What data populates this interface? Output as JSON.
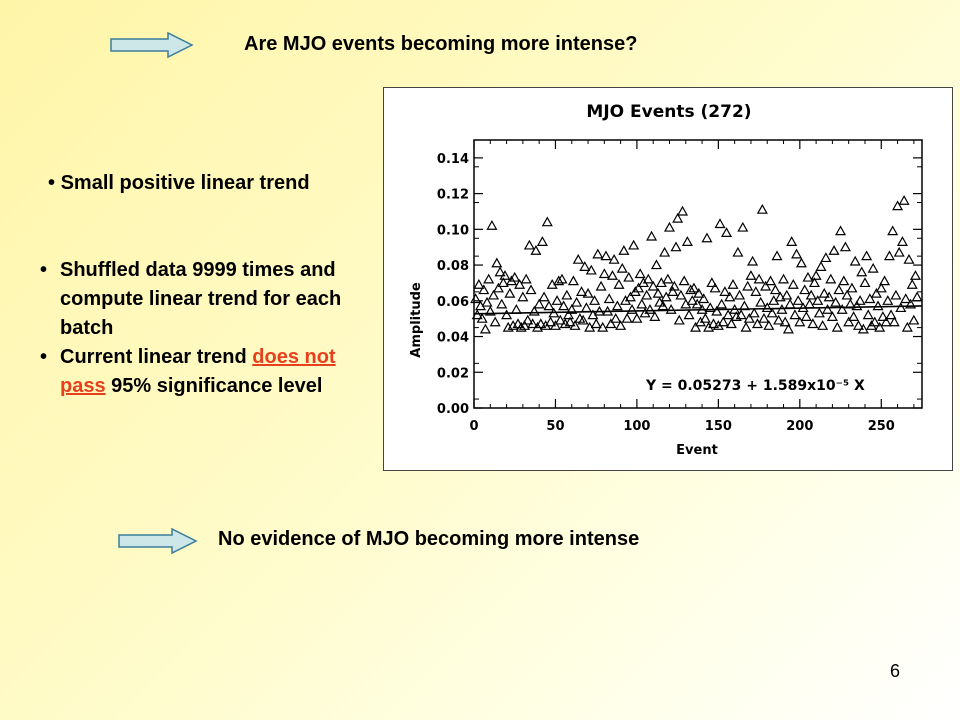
{
  "slide": {
    "title": "Are MJO events becoming more intense?",
    "bullet_top": "Small positive linear trend",
    "bullets": {
      "b1": "Shuffled data 9999 times and compute linear trend for each batch",
      "b2_pre": "Current linear trend ",
      "b2_hl": "does not pass",
      "b2_post": " 95% significance level"
    },
    "conclusion": "No evidence of MJO becoming more intense",
    "page_number": "6",
    "bullet_char": "•"
  },
  "colors": {
    "arrow_fill": "#cde7e8",
    "highlight": "#e8401c"
  },
  "chart_data": {
    "type": "scatter",
    "title": "MJO Events (272)",
    "xlabel": "Event",
    "ylabel": "Amplitude",
    "xlim": [
      0,
      275
    ],
    "ylim": [
      0,
      0.15
    ],
    "xticks": [
      0,
      50,
      100,
      150,
      200,
      250
    ],
    "xtick_labels": [
      "0",
      "50",
      "100",
      "150",
      "200",
      "250"
    ],
    "yticks": [
      0,
      0.02,
      0.04,
      0.06,
      0.08,
      0.1,
      0.12,
      0.14
    ],
    "ytick_labels": [
      "0.00",
      "0.02",
      "0.04",
      "0.06",
      "0.08",
      "0.10",
      "0.12",
      "0.14"
    ],
    "marker": "triangle-open",
    "trend": {
      "intercept": 0.05273,
      "slope": 1.589e-05,
      "label": "Y = 0.05273 + 1.589x10⁻⁵ X"
    },
    "points": [
      [
        1,
        0.061
      ],
      [
        2,
        0.052
      ],
      [
        3,
        0.069
      ],
      [
        4,
        0.057
      ],
      [
        5,
        0.05
      ],
      [
        6,
        0.066
      ],
      [
        7,
        0.044
      ],
      [
        8,
        0.059
      ],
      [
        9,
        0.072
      ],
      [
        10,
        0.054
      ],
      [
        11,
        0.102
      ],
      [
        12,
        0.063
      ],
      [
        13,
        0.048
      ],
      [
        14,
        0.081
      ],
      [
        15,
        0.067
      ],
      [
        16,
        0.076
      ],
      [
        17,
        0.058
      ],
      [
        18,
        0.07
      ],
      [
        19,
        0.074
      ],
      [
        20,
        0.052
      ],
      [
        21,
        0.045
      ],
      [
        22,
        0.064
      ],
      [
        23,
        0.071
      ],
      [
        24,
        0.046
      ],
      [
        25,
        0.073
      ],
      [
        26,
        0.055
      ],
      [
        27,
        0.047
      ],
      [
        28,
        0.069
      ],
      [
        29,
        0.045
      ],
      [
        30,
        0.062
      ],
      [
        31,
        0.046
      ],
      [
        32,
        0.072
      ],
      [
        33,
        0.049
      ],
      [
        34,
        0.091
      ],
      [
        35,
        0.066
      ],
      [
        36,
        0.047
      ],
      [
        37,
        0.054
      ],
      [
        38,
        0.088
      ],
      [
        39,
        0.045
      ],
      [
        40,
        0.058
      ],
      [
        41,
        0.047
      ],
      [
        42,
        0.093
      ],
      [
        43,
        0.062
      ],
      [
        44,
        0.046
      ],
      [
        45,
        0.104
      ],
      [
        46,
        0.057
      ],
      [
        47,
        0.048
      ],
      [
        48,
        0.069
      ],
      [
        49,
        0.053
      ],
      [
        50,
        0.046
      ],
      [
        51,
        0.06
      ],
      [
        52,
        0.071
      ],
      [
        53,
        0.049
      ],
      [
        54,
        0.072
      ],
      [
        55,
        0.057
      ],
      [
        56,
        0.047
      ],
      [
        57,
        0.063
      ],
      [
        58,
        0.052
      ],
      [
        59,
        0.048
      ],
      [
        60,
        0.055
      ],
      [
        61,
        0.071
      ],
      [
        62,
        0.046
      ],
      [
        63,
        0.059
      ],
      [
        64,
        0.083
      ],
      [
        65,
        0.05
      ],
      [
        66,
        0.065
      ],
      [
        67,
        0.049
      ],
      [
        68,
        0.079
      ],
      [
        69,
        0.056
      ],
      [
        70,
        0.064
      ],
      [
        71,
        0.045
      ],
      [
        72,
        0.077
      ],
      [
        73,
        0.052
      ],
      [
        74,
        0.06
      ],
      [
        75,
        0.047
      ],
      [
        76,
        0.086
      ],
      [
        77,
        0.054
      ],
      [
        78,
        0.068
      ],
      [
        79,
        0.045
      ],
      [
        80,
        0.075
      ],
      [
        81,
        0.085
      ],
      [
        82,
        0.054
      ],
      [
        83,
        0.061
      ],
      [
        84,
        0.047
      ],
      [
        85,
        0.074
      ],
      [
        86,
        0.083
      ],
      [
        87,
        0.05
      ],
      [
        88,
        0.057
      ],
      [
        89,
        0.069
      ],
      [
        90,
        0.046
      ],
      [
        91,
        0.078
      ],
      [
        92,
        0.088
      ],
      [
        93,
        0.06
      ],
      [
        94,
        0.05
      ],
      [
        95,
        0.073
      ],
      [
        96,
        0.062
      ],
      [
        97,
        0.055
      ],
      [
        98,
        0.091
      ],
      [
        99,
        0.065
      ],
      [
        100,
        0.05
      ],
      [
        101,
        0.067
      ],
      [
        102,
        0.075
      ],
      [
        103,
        0.058
      ],
      [
        104,
        0.07
      ],
      [
        105,
        0.053
      ],
      [
        106,
        0.063
      ],
      [
        107,
        0.072
      ],
      [
        108,
        0.055
      ],
      [
        109,
        0.096
      ],
      [
        110,
        0.068
      ],
      [
        111,
        0.051
      ],
      [
        112,
        0.08
      ],
      [
        113,
        0.064
      ],
      [
        114,
        0.059
      ],
      [
        115,
        0.07
      ],
      [
        116,
        0.057
      ],
      [
        117,
        0.087
      ],
      [
        118,
        0.062
      ],
      [
        119,
        0.072
      ],
      [
        120,
        0.101
      ],
      [
        121,
        0.055
      ],
      [
        122,
        0.065
      ],
      [
        123,
        0.068
      ],
      [
        124,
        0.09
      ],
      [
        125,
        0.106
      ],
      [
        126,
        0.049
      ],
      [
        127,
        0.063
      ],
      [
        128,
        0.11
      ],
      [
        129,
        0.071
      ],
      [
        130,
        0.058
      ],
      [
        131,
        0.093
      ],
      [
        132,
        0.052
      ],
      [
        133,
        0.066
      ],
      [
        134,
        0.06
      ],
      [
        135,
        0.067
      ],
      [
        136,
        0.045
      ],
      [
        137,
        0.058
      ],
      [
        138,
        0.064
      ],
      [
        139,
        0.048
      ],
      [
        140,
        0.055
      ],
      [
        141,
        0.061
      ],
      [
        142,
        0.05
      ],
      [
        143,
        0.095
      ],
      [
        144,
        0.045
      ],
      [
        145,
        0.056
      ],
      [
        146,
        0.07
      ],
      [
        147,
        0.047
      ],
      [
        148,
        0.067
      ],
      [
        149,
        0.054
      ],
      [
        150,
        0.046
      ],
      [
        151,
        0.103
      ],
      [
        152,
        0.058
      ],
      [
        153,
        0.048
      ],
      [
        154,
        0.065
      ],
      [
        155,
        0.098
      ],
      [
        156,
        0.052
      ],
      [
        157,
        0.062
      ],
      [
        158,
        0.047
      ],
      [
        159,
        0.069
      ],
      [
        160,
        0.055
      ],
      [
        161,
        0.051
      ],
      [
        162,
        0.087
      ],
      [
        163,
        0.063
      ],
      [
        164,
        0.052
      ],
      [
        165,
        0.101
      ],
      [
        166,
        0.057
      ],
      [
        167,
        0.045
      ],
      [
        168,
        0.068
      ],
      [
        169,
        0.05
      ],
      [
        170,
        0.074
      ],
      [
        171,
        0.082
      ],
      [
        172,
        0.053
      ],
      [
        173,
        0.065
      ],
      [
        174,
        0.047
      ],
      [
        175,
        0.072
      ],
      [
        176,
        0.059
      ],
      [
        177,
        0.111
      ],
      [
        178,
        0.05
      ],
      [
        179,
        0.068
      ],
      [
        180,
        0.056
      ],
      [
        181,
        0.046
      ],
      [
        182,
        0.071
      ],
      [
        183,
        0.053
      ],
      [
        184,
        0.06
      ],
      [
        185,
        0.066
      ],
      [
        186,
        0.085
      ],
      [
        187,
        0.049
      ],
      [
        188,
        0.062
      ],
      [
        189,
        0.055
      ],
      [
        190,
        0.072
      ],
      [
        191,
        0.048
      ],
      [
        192,
        0.063
      ],
      [
        193,
        0.044
      ],
      [
        194,
        0.058
      ],
      [
        195,
        0.093
      ],
      [
        196,
        0.069
      ],
      [
        197,
        0.052
      ],
      [
        198,
        0.086
      ],
      [
        199,
        0.06
      ],
      [
        200,
        0.048
      ],
      [
        201,
        0.081
      ],
      [
        202,
        0.056
      ],
      [
        203,
        0.066
      ],
      [
        204,
        0.051
      ],
      [
        205,
        0.073
      ],
      [
        206,
        0.058
      ],
      [
        207,
        0.063
      ],
      [
        208,
        0.047
      ],
      [
        209,
        0.07
      ],
      [
        210,
        0.074
      ],
      [
        211,
        0.06
      ],
      [
        212,
        0.053
      ],
      [
        213,
        0.079
      ],
      [
        214,
        0.046
      ],
      [
        215,
        0.064
      ],
      [
        216,
        0.084
      ],
      [
        217,
        0.055
      ],
      [
        218,
        0.062
      ],
      [
        219,
        0.072
      ],
      [
        220,
        0.051
      ],
      [
        221,
        0.088
      ],
      [
        222,
        0.059
      ],
      [
        223,
        0.045
      ],
      [
        224,
        0.066
      ],
      [
        225,
        0.099
      ],
      [
        226,
        0.055
      ],
      [
        227,
        0.071
      ],
      [
        228,
        0.09
      ],
      [
        229,
        0.063
      ],
      [
        230,
        0.048
      ],
      [
        231,
        0.058
      ],
      [
        232,
        0.067
      ],
      [
        233,
        0.051
      ],
      [
        234,
        0.082
      ],
      [
        235,
        0.057
      ],
      [
        236,
        0.046
      ],
      [
        237,
        0.06
      ],
      [
        238,
        0.076
      ],
      [
        239,
        0.044
      ],
      [
        240,
        0.07
      ],
      [
        241,
        0.085
      ],
      [
        242,
        0.052
      ],
      [
        243,
        0.061
      ],
      [
        244,
        0.046
      ],
      [
        245,
        0.078
      ],
      [
        246,
        0.048
      ],
      [
        247,
        0.064
      ],
      [
        248,
        0.057
      ],
      [
        249,
        0.045
      ],
      [
        250,
        0.067
      ],
      [
        251,
        0.051
      ],
      [
        252,
        0.071
      ],
      [
        253,
        0.048
      ],
      [
        254,
        0.06
      ],
      [
        255,
        0.085
      ],
      [
        256,
        0.052
      ],
      [
        257,
        0.099
      ],
      [
        258,
        0.048
      ],
      [
        259,
        0.063
      ],
      [
        260,
        0.113
      ],
      [
        261,
        0.087
      ],
      [
        262,
        0.056
      ],
      [
        263,
        0.093
      ],
      [
        264,
        0.116
      ],
      [
        265,
        0.061
      ],
      [
        266,
        0.045
      ],
      [
        267,
        0.083
      ],
      [
        268,
        0.058
      ],
      [
        269,
        0.069
      ],
      [
        270,
        0.049
      ],
      [
        271,
        0.074
      ],
      [
        272,
        0.062
      ]
    ]
  }
}
